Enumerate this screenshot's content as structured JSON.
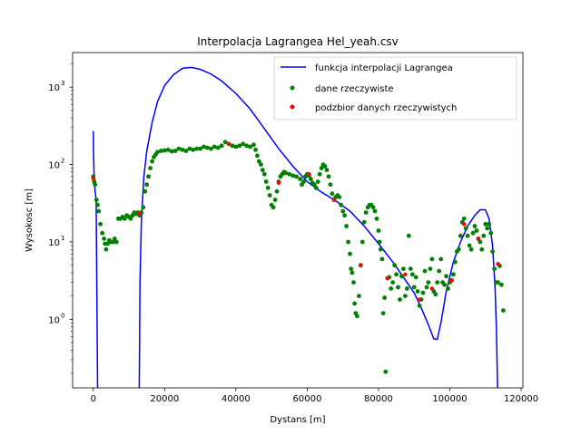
{
  "chart_data": {
    "type": "scatter+line",
    "title": "Interpolacja Lagrangea Hel_yeah.csv",
    "xlabel": "Dystans [m]",
    "ylabel": "Wysokosc [m]",
    "xlim": [
      -5800,
      120500
    ],
    "ylim": [
      0.13,
      2800
    ],
    "yscale": "log",
    "x_ticks": [
      {
        "value": 0,
        "label": "0"
      },
      {
        "value": 20000,
        "label": "20000"
      },
      {
        "value": 40000,
        "label": "40000"
      },
      {
        "value": 60000,
        "label": "60000"
      },
      {
        "value": 80000,
        "label": "80000"
      },
      {
        "value": 100000,
        "label": "100000"
      },
      {
        "value": 120000,
        "label": "120000"
      }
    ],
    "y_ticks": [
      {
        "value": 1,
        "base": "10",
        "exp": "0"
      },
      {
        "value": 10,
        "base": "10",
        "exp": "1"
      },
      {
        "value": 100,
        "base": "10",
        "exp": "2"
      },
      {
        "value": 1000,
        "base": "10",
        "exp": "3"
      }
    ],
    "grid": false,
    "legend_position": "top-right",
    "legend": [
      {
        "label": "funkcja interpolacji Lagrangea",
        "color": "#0000ff",
        "marker": "line"
      },
      {
        "label": "dane rzeczywiste",
        "color": "#008000",
        "marker": "dot"
      },
      {
        "label": "podzbior danych rzeczywistych",
        "color": "#ff0000",
        "marker": "dot"
      }
    ],
    "series": [
      {
        "name": "funkcja interpolacji Lagrangea",
        "type": "line",
        "color": "#0000ff",
        "segments": [
          {
            "x": [
              0,
              60,
              100,
              180,
              300,
              500,
              800,
              1200
            ],
            "y": [
              270,
              150,
              120,
              85,
              60,
              45,
              35,
              0.13
            ]
          },
          {
            "x": [
              12900,
              13100,
              13500,
              14200,
              15000,
              16500,
              18000,
              20000,
              22500,
              25000,
              27500,
              30000,
              33000,
              36000,
              40000,
              44000,
              48000,
              52000,
              56000,
              60000,
              64000,
              68000,
              72000,
              76000,
              80000,
              84000,
              87000,
              90000,
              92000,
              94000,
              95500,
              96500,
              97500,
              99000,
              101000,
              103000,
              105000,
              107000,
              108500,
              110000,
              111000,
              112000,
              112700,
              113100,
              113400
            ],
            "y": [
              0.13,
              3,
              20,
              70,
              150,
              350,
              650,
              1050,
              1450,
              1750,
              1800,
              1700,
              1480,
              1200,
              830,
              520,
              290,
              160,
              95,
              60,
              44,
              34,
              25,
              16,
              9.5,
              5.5,
              3.5,
              2.2,
              1.4,
              0.85,
              0.56,
              0.55,
              0.9,
              2.3,
              5.5,
              10,
              16,
              22,
              26,
              26,
              20,
              9,
              2.5,
              0.7,
              0.13
            ]
          }
        ]
      },
      {
        "name": "dane rzeczywiste",
        "type": "scatter",
        "color": "#008000",
        "points": [
          [
            0,
            70
          ],
          [
            250,
            60
          ],
          [
            500,
            55
          ],
          [
            900,
            35
          ],
          [
            1200,
            30
          ],
          [
            1500,
            25
          ],
          [
            2000,
            17
          ],
          [
            2500,
            13
          ],
          [
            3000,
            11
          ],
          [
            3300,
            9.5
          ],
          [
            3600,
            8
          ],
          [
            4000,
            9.5
          ],
          [
            4500,
            10.5
          ],
          [
            5000,
            10
          ],
          [
            5500,
            10
          ],
          [
            6000,
            11
          ],
          [
            6500,
            10
          ],
          [
            7000,
            20
          ],
          [
            7600,
            20
          ],
          [
            8200,
            21
          ],
          [
            8800,
            20
          ],
          [
            9400,
            22
          ],
          [
            10000,
            21
          ],
          [
            10500,
            20
          ],
          [
            11000,
            22
          ],
          [
            11500,
            24
          ],
          [
            12000,
            23
          ],
          [
            12500,
            24
          ],
          [
            13000,
            22
          ],
          [
            13500,
            24
          ],
          [
            14000,
            28
          ],
          [
            14500,
            45
          ],
          [
            15000,
            55
          ],
          [
            15500,
            70
          ],
          [
            16000,
            90
          ],
          [
            16500,
            110
          ],
          [
            17000,
            125
          ],
          [
            17500,
            135
          ],
          [
            18000,
            145
          ],
          [
            19000,
            150
          ],
          [
            20000,
            152
          ],
          [
            21000,
            155
          ],
          [
            22000,
            148
          ],
          [
            23000,
            150
          ],
          [
            24000,
            160
          ],
          [
            25000,
            155
          ],
          [
            26000,
            150
          ],
          [
            27000,
            160
          ],
          [
            28000,
            155
          ],
          [
            29000,
            160
          ],
          [
            30000,
            160
          ],
          [
            31000,
            170
          ],
          [
            32000,
            165
          ],
          [
            33000,
            160
          ],
          [
            34000,
            170
          ],
          [
            35000,
            165
          ],
          [
            36000,
            175
          ],
          [
            37000,
            195
          ],
          [
            38000,
            185
          ],
          [
            39000,
            175
          ],
          [
            40000,
            170
          ],
          [
            41000,
            175
          ],
          [
            42000,
            185
          ],
          [
            43000,
            175
          ],
          [
            44000,
            170
          ],
          [
            45000,
            180
          ],
          [
            45500,
            155
          ],
          [
            46000,
            130
          ],
          [
            46500,
            110
          ],
          [
            47000,
            100
          ],
          [
            47500,
            85
          ],
          [
            48000,
            75
          ],
          [
            48500,
            60
          ],
          [
            49000,
            50
          ],
          [
            49500,
            40
          ],
          [
            50000,
            30
          ],
          [
            50500,
            28
          ],
          [
            51000,
            35
          ],
          [
            51500,
            45
          ],
          [
            52000,
            60
          ],
          [
            52500,
            70
          ],
          [
            53000,
            75
          ],
          [
            53500,
            80
          ],
          [
            54000,
            78
          ],
          [
            55000,
            75
          ],
          [
            56000,
            72
          ],
          [
            57000,
            70
          ],
          [
            58000,
            65
          ],
          [
            58500,
            55
          ],
          [
            59000,
            60
          ],
          [
            59500,
            70
          ],
          [
            60000,
            75
          ],
          [
            60500,
            72
          ],
          [
            61000,
            65
          ],
          [
            61500,
            58
          ],
          [
            62000,
            55
          ],
          [
            62500,
            50
          ],
          [
            63000,
            60
          ],
          [
            63500,
            75
          ],
          [
            64000,
            90
          ],
          [
            64500,
            100
          ],
          [
            65000,
            95
          ],
          [
            65500,
            85
          ],
          [
            66000,
            70
          ],
          [
            66500,
            55
          ],
          [
            67000,
            42
          ],
          [
            67500,
            35
          ],
          [
            68000,
            38
          ],
          [
            68500,
            40
          ],
          [
            69000,
            38
          ],
          [
            69500,
            30
          ],
          [
            70000,
            25
          ],
          [
            70500,
            22
          ],
          [
            71000,
            16
          ],
          [
            71500,
            10
          ],
          [
            72000,
            7
          ],
          [
            72300,
            4.5
          ],
          [
            72600,
            4
          ],
          [
            73000,
            3
          ],
          [
            73300,
            1.6
          ],
          [
            73600,
            1.2
          ],
          [
            74000,
            1.1
          ],
          [
            74500,
            2
          ],
          [
            75000,
            5
          ],
          [
            75500,
            10
          ],
          [
            76000,
            18
          ],
          [
            76500,
            24
          ],
          [
            77000,
            28
          ],
          [
            77500,
            30
          ],
          [
            78000,
            30
          ],
          [
            78500,
            28
          ],
          [
            79000,
            25
          ],
          [
            79500,
            20
          ],
          [
            80000,
            14
          ],
          [
            80300,
            10
          ],
          [
            80600,
            8
          ],
          [
            81000,
            6
          ],
          [
            81300,
            1.2
          ],
          [
            81700,
            1.9
          ],
          [
            82000,
            0.21
          ],
          [
            82500,
            3.4
          ],
          [
            83000,
            3.5
          ],
          [
            83500,
            2.5
          ],
          [
            84000,
            3
          ],
          [
            84500,
            5
          ],
          [
            85000,
            3.8
          ],
          [
            85500,
            2.6
          ],
          [
            86000,
            1.8
          ],
          [
            86500,
            3.6
          ],
          [
            87000,
            4.5
          ],
          [
            87500,
            2
          ],
          [
            88000,
            2.5
          ],
          [
            88500,
            12
          ],
          [
            89000,
            4.5
          ],
          [
            89500,
            3.8
          ],
          [
            90000,
            2.6
          ],
          [
            90500,
            3.5
          ],
          [
            91000,
            2.3
          ],
          [
            91500,
            1.5
          ],
          [
            92000,
            1.8
          ],
          [
            92500,
            2.2
          ],
          [
            93000,
            4.2
          ],
          [
            93500,
            2.6
          ],
          [
            94000,
            3
          ],
          [
            94500,
            4.5
          ],
          [
            95000,
            6
          ],
          [
            95500,
            2.3
          ],
          [
            96000,
            2.1
          ],
          [
            96500,
            3
          ],
          [
            97000,
            4.2
          ],
          [
            97500,
            6
          ],
          [
            98000,
            3
          ],
          [
            98500,
            2.8
          ],
          [
            99000,
            3.6
          ],
          [
            99500,
            2.5
          ],
          [
            100000,
            3
          ],
          [
            100500,
            3.2
          ],
          [
            101000,
            3.8
          ],
          [
            101500,
            5.5
          ],
          [
            102000,
            7.5
          ],
          [
            102500,
            8
          ],
          [
            103000,
            12
          ],
          [
            103500,
            18
          ],
          [
            104000,
            20
          ],
          [
            104500,
            15
          ],
          [
            105000,
            12
          ],
          [
            105500,
            9
          ],
          [
            106000,
            8
          ],
          [
            106500,
            13
          ],
          [
            107000,
            16
          ],
          [
            107500,
            14
          ],
          [
            108000,
            11
          ],
          [
            108500,
            10
          ],
          [
            109000,
            8
          ],
          [
            109500,
            12
          ],
          [
            110000,
            17
          ],
          [
            110500,
            15
          ],
          [
            111000,
            17
          ],
          [
            111500,
            13
          ],
          [
            112000,
            7.5
          ],
          [
            112500,
            4.5
          ],
          [
            113000,
            3
          ],
          [
            113500,
            3
          ],
          [
            114000,
            4.9
          ],
          [
            114500,
            2.8
          ],
          [
            115000,
            1.3
          ]
        ]
      },
      {
        "name": "podzbior danych rzeczywistych",
        "type": "scatter",
        "color": "#ff0000",
        "points": [
          [
            0,
            66
          ],
          [
            12900,
            23
          ],
          [
            38000,
            185
          ],
          [
            52000,
            58
          ],
          [
            60500,
            75
          ],
          [
            67500,
            35
          ],
          [
            75000,
            5
          ],
          [
            82500,
            3.4
          ],
          [
            87500,
            3.8
          ],
          [
            91500,
            1.8
          ],
          [
            95000,
            2.5
          ],
          [
            100500,
            3.2
          ],
          [
            104000,
            17
          ],
          [
            108000,
            11
          ],
          [
            113500,
            5.2
          ]
        ]
      }
    ]
  }
}
